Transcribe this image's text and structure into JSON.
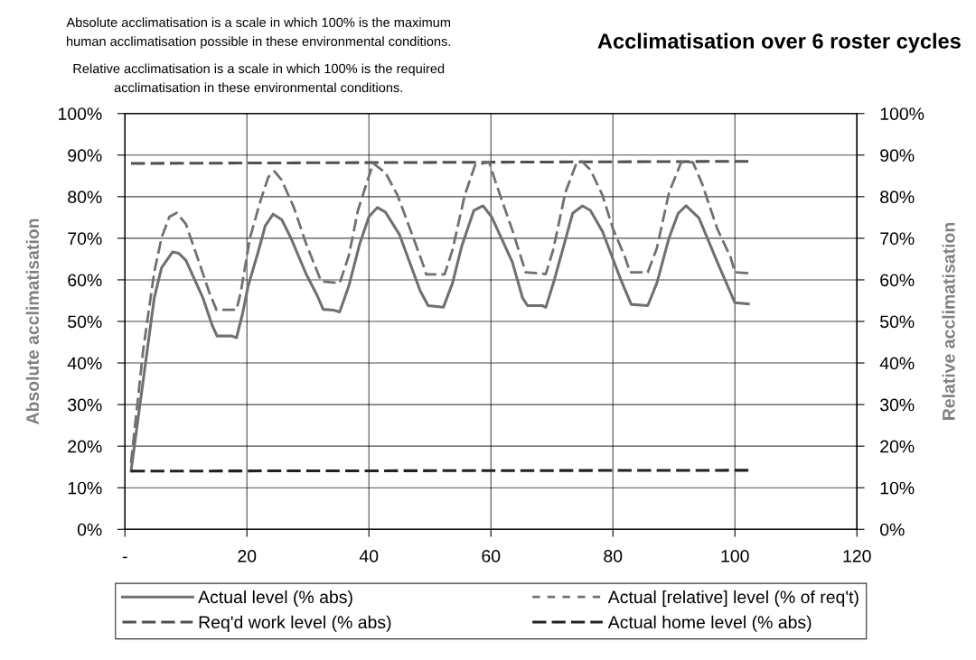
{
  "chart_data": {
    "type": "line",
    "title": "Acclimatisation over 6 roster cycles",
    "annotations": [
      "Absolute acclimatisation is a scale in which 100% is the maximum\nhuman acclimatisation possible in these environmental conditions.",
      "Relative acclimatisation is a scale in which 100% is the required\nacclimatisation in these environmental conditions."
    ],
    "ylabel": "Absolute acclimatisation",
    "y2label": "Relative acclimatisation",
    "xlim": [
      0,
      120
    ],
    "xticks": [
      {
        "value": 0,
        "label": "-"
      },
      20,
      40,
      60,
      80,
      100,
      120
    ],
    "ylim": [
      0,
      1
    ],
    "yticks": [
      {
        "value": 0,
        "label": "0%"
      },
      {
        "value": 0.1,
        "label": "10%"
      },
      {
        "value": 0.2,
        "label": "20%"
      },
      {
        "value": 0.3,
        "label": "30%"
      },
      {
        "value": 0.4,
        "label": "40%"
      },
      {
        "value": 0.5,
        "label": "50%"
      },
      {
        "value": 0.6,
        "label": "60%"
      },
      {
        "value": 0.7,
        "label": "70%"
      },
      {
        "value": 0.8,
        "label": "80%"
      },
      {
        "value": 0.9,
        "label": "90%"
      },
      {
        "value": 1,
        "label": "100%"
      }
    ],
    "y2lim": [
      0,
      1
    ],
    "y2ticks": [
      {
        "value": 0,
        "label": "0%"
      },
      {
        "value": 0.1,
        "label": "10%"
      },
      {
        "value": 0.2,
        "label": "20%"
      },
      {
        "value": 0.3,
        "label": "30%"
      },
      {
        "value": 0.4,
        "label": "40%"
      },
      {
        "value": 0.5,
        "label": "50%"
      },
      {
        "value": 0.6,
        "label": "60%"
      },
      {
        "value": 0.7,
        "label": "70%"
      },
      {
        "value": 0.8,
        "label": "80%"
      },
      {
        "value": 0.9,
        "label": "90%"
      },
      {
        "value": 1,
        "label": "100%"
      }
    ],
    "grid": true,
    "legend": "bottom",
    "marker": "none",
    "series": [
      {
        "name": "Actual level (% abs)",
        "color": "#707070",
        "line_style": "solid",
        "x": [
          1,
          4.8,
          6.0,
          7.8,
          8.8,
          10.0,
          12.8,
          14.3,
          15.1,
          17.5,
          18.3,
          19.3,
          20.2,
          21.8,
          23.0,
          24.3,
          25.7,
          27.2,
          29.7,
          31.5,
          32.5,
          34.2,
          35.2,
          36.7,
          38.5,
          40.0,
          41.4,
          42.7,
          45.0,
          48.4,
          49.7,
          52.2,
          53.7,
          55.2,
          57.2,
          58.7,
          60.1,
          63.5,
          65.2,
          66.0,
          68.4,
          69.0,
          70.4,
          73.4,
          75.0,
          76.3,
          78.3,
          81.3,
          83.0,
          85.7,
          87.2,
          89.2,
          90.7,
          92.0,
          94.1,
          97.1,
          100.0,
          102.2
        ],
        "values": [
          0.14,
          0.556,
          0.629,
          0.667,
          0.664,
          0.647,
          0.556,
          0.491,
          0.465,
          0.465,
          0.461,
          0.52,
          0.585,
          0.665,
          0.73,
          0.758,
          0.745,
          0.701,
          0.614,
          0.563,
          0.529,
          0.527,
          0.523,
          0.585,
          0.687,
          0.752,
          0.774,
          0.763,
          0.709,
          0.574,
          0.538,
          0.534,
          0.592,
          0.68,
          0.767,
          0.778,
          0.752,
          0.643,
          0.556,
          0.538,
          0.538,
          0.534,
          0.6,
          0.76,
          0.778,
          0.767,
          0.716,
          0.6,
          0.541,
          0.538,
          0.592,
          0.701,
          0.76,
          0.778,
          0.749,
          0.643,
          0.545,
          0.542
        ]
      },
      {
        "name": "Actual [relative] level (% of req't)",
        "color": "#707070",
        "line_style": "dotted",
        "axis": "y2",
        "x": [
          1,
          3.0,
          4.8,
          6.0,
          7.3,
          8.5,
          10.0,
          12.3,
          13.8,
          15.0,
          18.3,
          19.0,
          20.5,
          22.2,
          23.5,
          24.5,
          25.7,
          27.7,
          29.7,
          31.5,
          32.2,
          35.2,
          36.7,
          38.2,
          39.7,
          40.7,
          42.7,
          44.7,
          46.9,
          48.9,
          49.4,
          52.4,
          53.7,
          55.7,
          57.4,
          59.7,
          61.0,
          63.5,
          65.0,
          65.7,
          69.0,
          70.2,
          72.2,
          73.9,
          74.9,
          76.3,
          78.3,
          80.0,
          82.0,
          82.8,
          85.7,
          87.2,
          89.2,
          91.2,
          93.1,
          94.6,
          97.1,
          99.3,
          100.0,
          102.2
        ],
        "values": [
          0.16,
          0.432,
          0.618,
          0.701,
          0.752,
          0.761,
          0.734,
          0.636,
          0.571,
          0.528,
          0.528,
          0.571,
          0.701,
          0.789,
          0.847,
          0.861,
          0.84,
          0.774,
          0.687,
          0.621,
          0.596,
          0.592,
          0.658,
          0.767,
          0.836,
          0.88,
          0.858,
          0.803,
          0.716,
          0.636,
          0.613,
          0.613,
          0.672,
          0.803,
          0.876,
          0.883,
          0.825,
          0.72,
          0.651,
          0.618,
          0.614,
          0.672,
          0.81,
          0.876,
          0.885,
          0.865,
          0.803,
          0.723,
          0.654,
          0.618,
          0.618,
          0.676,
          0.81,
          0.883,
          0.883,
          0.832,
          0.723,
          0.654,
          0.618,
          0.616
        ]
      },
      {
        "name": "Req'd work level (% abs)",
        "color": "#505050",
        "line_style": "dashed",
        "x": [
          1,
          102.2
        ],
        "values": [
          0.88,
          0.885
        ]
      },
      {
        "name": "Actual home level (% abs)",
        "color": "#202020",
        "line_style": "dashed",
        "x": [
          1,
          102.2
        ],
        "values": [
          0.14,
          0.142
        ]
      }
    ]
  }
}
